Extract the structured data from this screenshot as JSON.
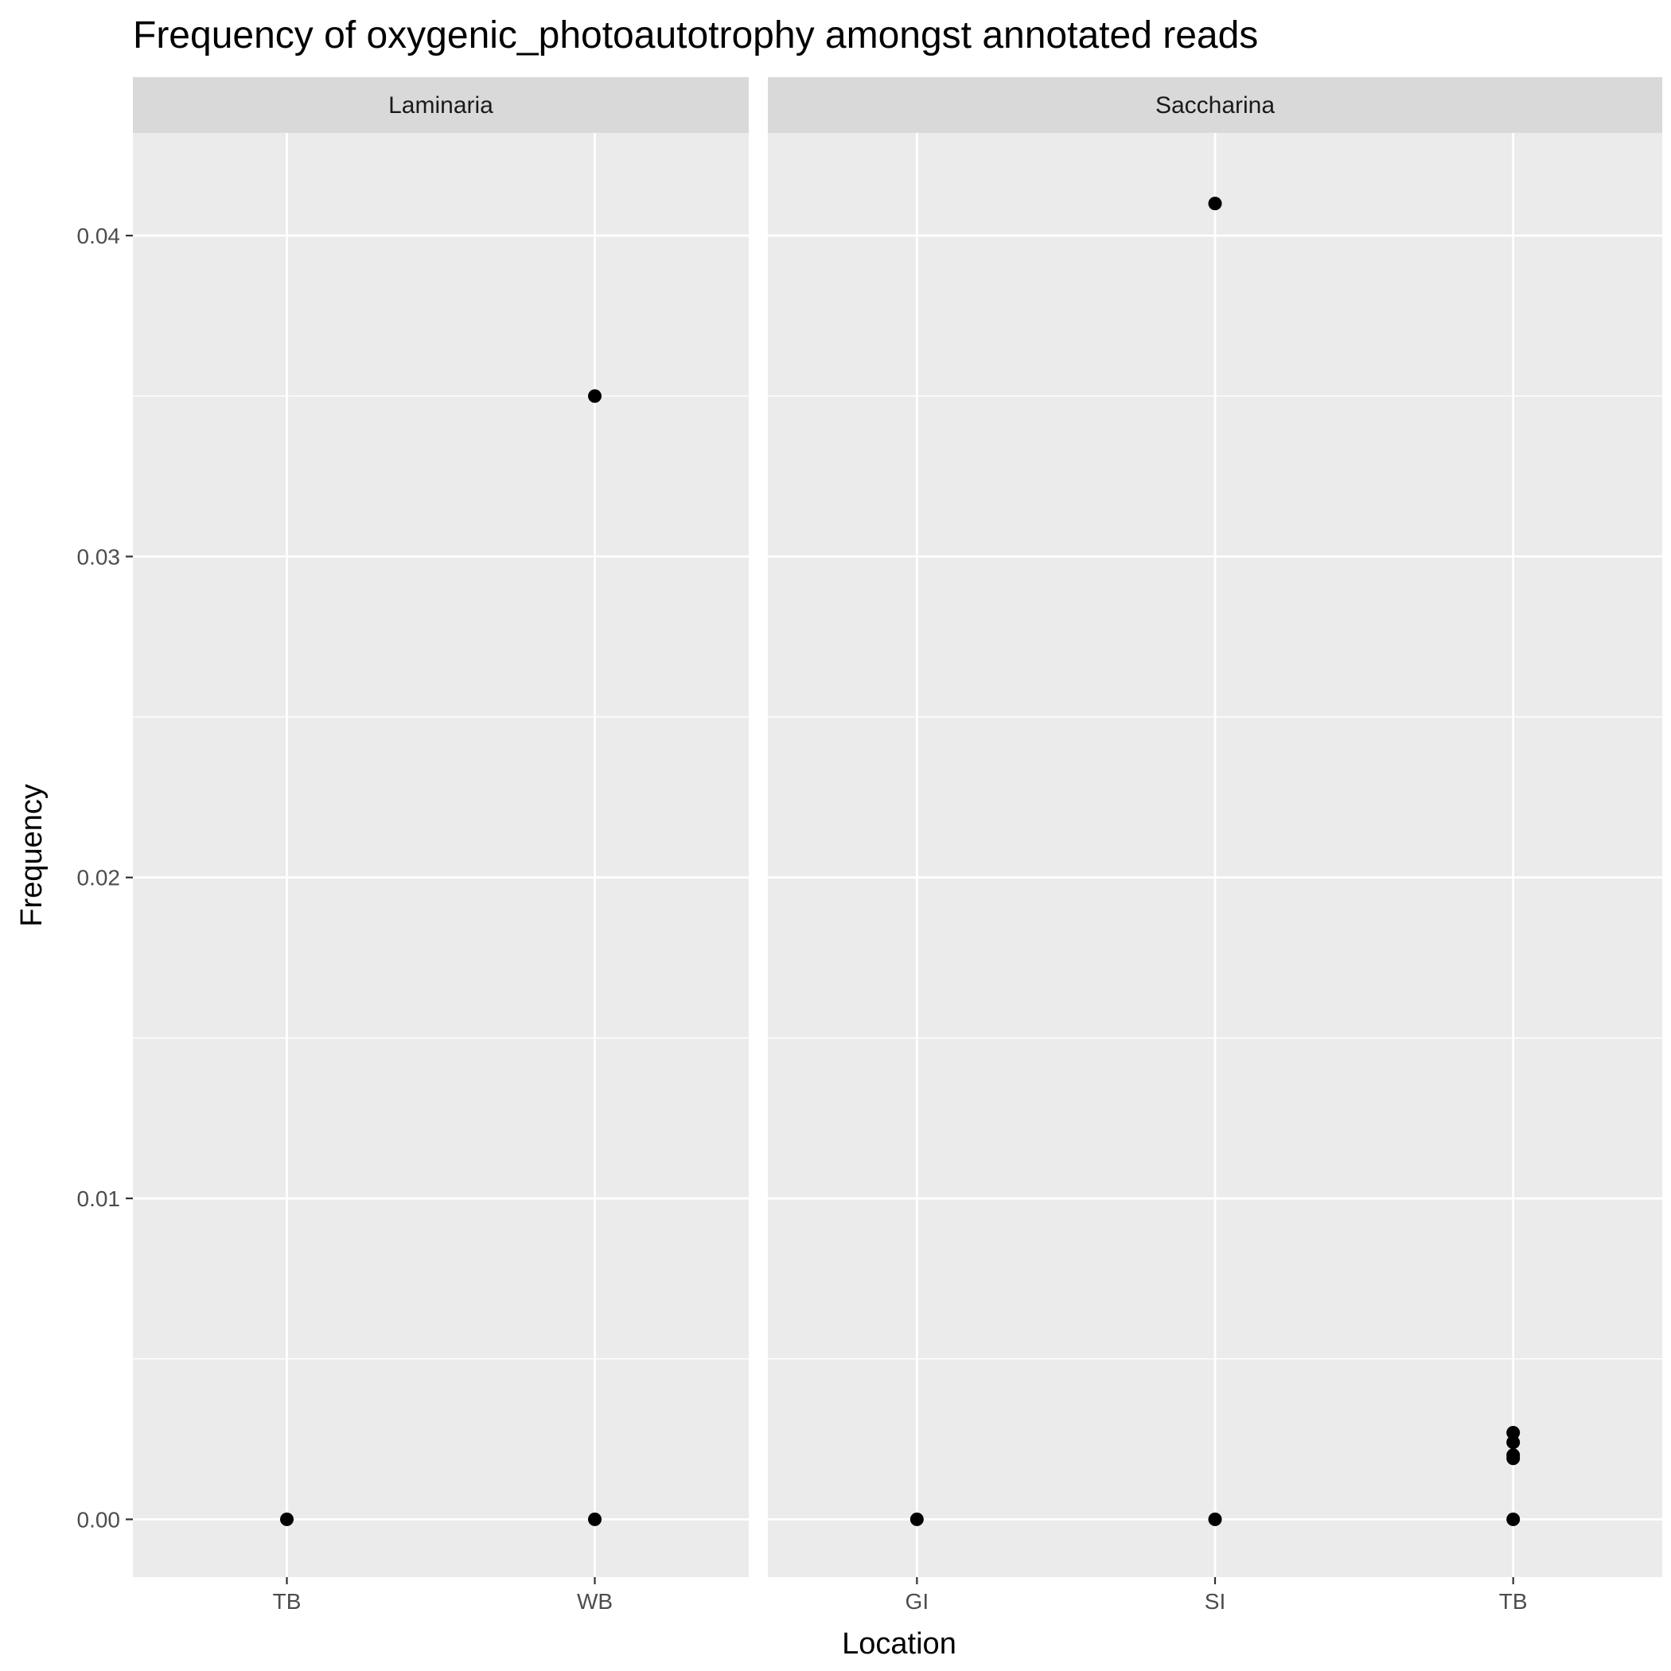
{
  "chart_data": {
    "type": "scatter",
    "title": "Frequency of oxygenic_photoautotrophy amongst annotated reads",
    "xlabel": "Location",
    "ylabel": "Frequency",
    "ylim": [
      -0.0018,
      0.0432
    ],
    "yticks": [
      0.0,
      0.01,
      0.02,
      0.03,
      0.04
    ],
    "ytick_labels": [
      "0.00",
      "0.01",
      "0.02",
      "0.03",
      "0.04"
    ],
    "grid": true,
    "panel_background": "#ebebeb",
    "strip_background": "#d9d9d9",
    "point_color": "#000000",
    "panels": [
      {
        "name": "Laminaria",
        "categories": [
          "TB",
          "WB"
        ],
        "points": [
          {
            "x": "TB",
            "y": 0.0
          },
          {
            "x": "WB",
            "y": 0.0
          },
          {
            "x": "WB",
            "y": 0.035
          }
        ]
      },
      {
        "name": "Saccharina",
        "categories": [
          "GI",
          "SI",
          "TB"
        ],
        "points": [
          {
            "x": "GI",
            "y": 0.0
          },
          {
            "x": "SI",
            "y": 0.0
          },
          {
            "x": "SI",
            "y": 0.041
          },
          {
            "x": "TB",
            "y": 0.0
          },
          {
            "x": "TB",
            "y": 0.0019
          },
          {
            "x": "TB",
            "y": 0.002
          },
          {
            "x": "TB",
            "y": 0.0024
          },
          {
            "x": "TB",
            "y": 0.0027
          }
        ]
      }
    ]
  }
}
